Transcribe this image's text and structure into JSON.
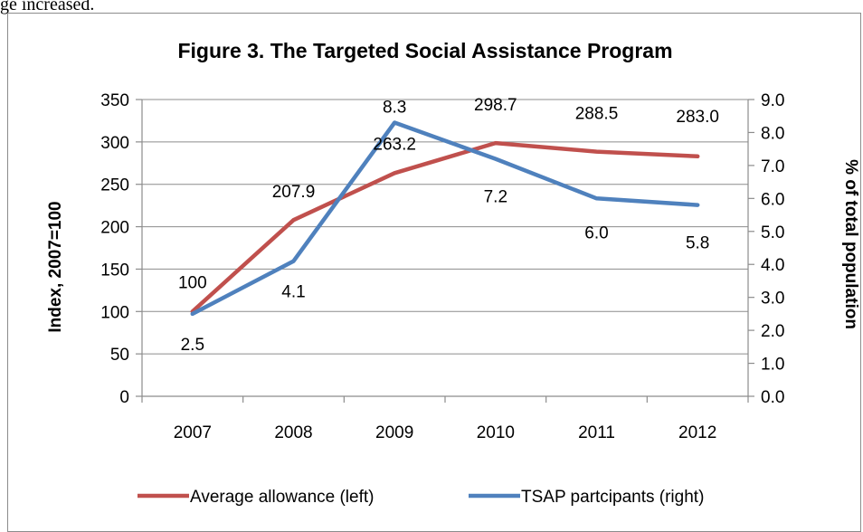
{
  "page": {
    "top_note": "ge increased."
  },
  "chart_data": {
    "type": "line",
    "title": "Figure 3. The Targeted Social Assistance Program",
    "categories": [
      "2007",
      "2008",
      "2009",
      "2010",
      "2011",
      "2012"
    ],
    "y_left": {
      "label": "Index, 2007=100",
      "ylim": [
        0,
        350
      ],
      "ticks": [
        0,
        50,
        100,
        150,
        200,
        250,
        300,
        350
      ],
      "tick_labels": [
        "0",
        "50",
        "100",
        "150",
        "200",
        "250",
        "300",
        "350"
      ]
    },
    "y_right": {
      "label": "% of total population",
      "ylim": [
        0,
        9
      ],
      "ticks": [
        0,
        1,
        2,
        3,
        4,
        5,
        6,
        7,
        8,
        9
      ],
      "tick_labels": [
        "0.0",
        "1.0",
        "2.0",
        "3.0",
        "4.0",
        "5.0",
        "6.0",
        "7.0",
        "8.0",
        "9.0"
      ]
    },
    "series": [
      {
        "name": "Average allowance (left)",
        "axis": "left",
        "color": "#c0504d",
        "values": [
          100,
          207.9,
          263.2,
          298.7,
          288.5,
          283.0
        ],
        "labels": [
          "100",
          "207.9",
          "263.2",
          "298.7",
          "288.5",
          "283.0"
        ]
      },
      {
        "name": "TSAP partcipants (right)",
        "axis": "right",
        "color": "#4f81bd",
        "values": [
          2.5,
          4.1,
          8.3,
          7.2,
          6.0,
          5.8
        ],
        "labels": [
          "2.5",
          "4.1",
          "8.3",
          "7.2",
          "6.0",
          "5.8"
        ]
      }
    ],
    "grid": true,
    "legend": "bottom"
  }
}
